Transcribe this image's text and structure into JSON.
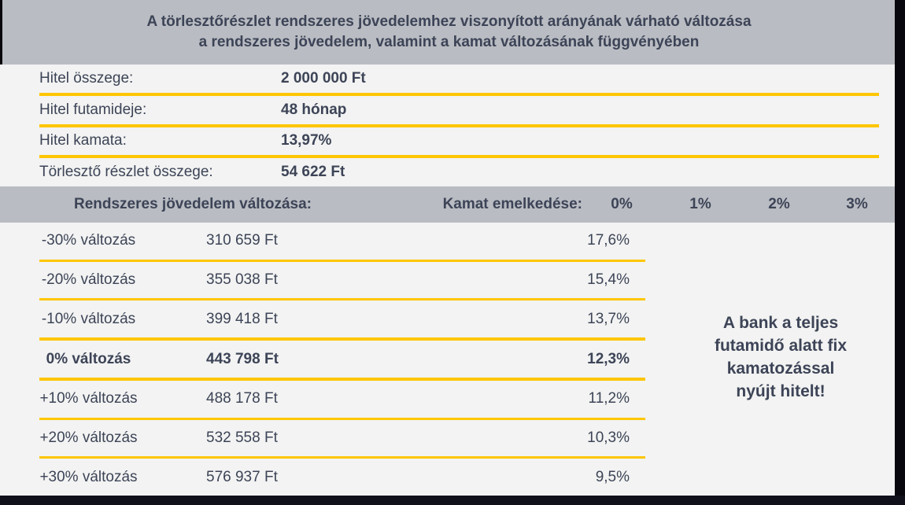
{
  "title": {
    "line1": "A törlesztőrészlet rendszeres jövedelemhez viszonyított arányának várható változása",
    "line2": "a rendszeres jövedelem, valamint a kamat változásának függvényében"
  },
  "loan_info": [
    {
      "label": "Hitel összege:",
      "value": "2 000 000 Ft"
    },
    {
      "label": "Hitel futamideje:",
      "value": "48 hónap"
    },
    {
      "label": "Hitel kamata:",
      "value": "13,97%"
    },
    {
      "label": "Törlesztő részlet összege:",
      "value": "54 622 Ft"
    }
  ],
  "table": {
    "header": {
      "income_change_label": "Rendszeres jövedelem változása:",
      "rate_increase_label": "Kamat emelkedése:",
      "rate_columns": [
        "0%",
        "1%",
        "2%",
        "3%"
      ]
    },
    "rows": [
      {
        "change": "-30% változás",
        "income": "310 659 Ft",
        "ratio_0pct": "17,6%"
      },
      {
        "change": "-20% változás",
        "income": "355 038 Ft",
        "ratio_0pct": "15,4%"
      },
      {
        "change": "-10% változás",
        "income": "399 418 Ft",
        "ratio_0pct": "13,7%"
      },
      {
        "change": "0% változás",
        "income": "443 798 Ft",
        "ratio_0pct": "12,3%"
      },
      {
        "change": "+10% változás",
        "income": "488 178 Ft",
        "ratio_0pct": "11,2%"
      },
      {
        "change": "+20% változás",
        "income": "532 558 Ft",
        "ratio_0pct": "10,3%"
      },
      {
        "change": "+30% változás",
        "income": "576 937 Ft",
        "ratio_0pct": "9,5%"
      }
    ]
  },
  "note_lines": [
    "A bank a teljes",
    "futamidő alatt fix",
    "kamatozással",
    "nyújt hitelt!"
  ],
  "colors": {
    "band_gray": "#b9bcc2",
    "background": "#f2f3f2",
    "text_dark": "#3d4457",
    "accent_yellow": "#ffc600",
    "edge_dark": "#07070d",
    "bottom_bar": "#10101a"
  }
}
